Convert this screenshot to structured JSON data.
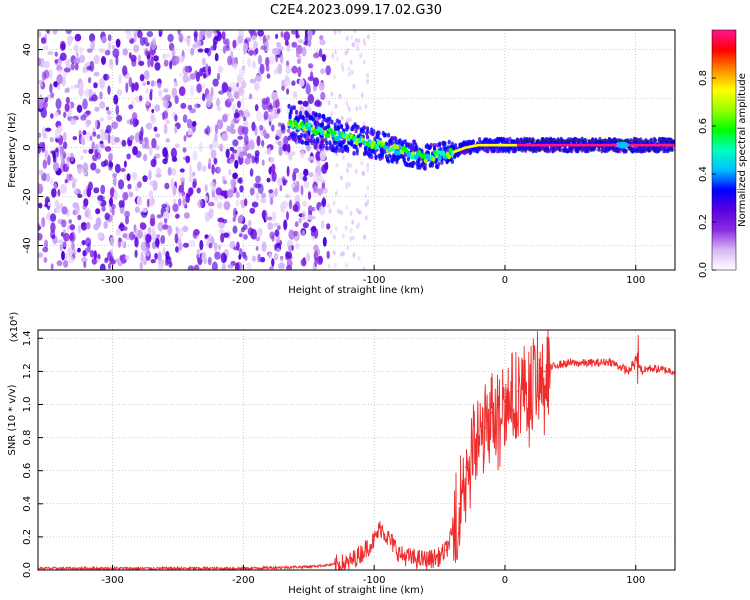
{
  "figure": {
    "title": "C2E4.2023.099.17.02.G30"
  },
  "chart_data": [
    {
      "type": "heatmap",
      "xlabel": "Height of straight line (km)",
      "ylabel": "Frequency (Hz)",
      "xlim": [
        -357,
        130
      ],
      "ylim": [
        -50,
        48
      ],
      "xticks": [
        -300,
        -200,
        -100,
        0,
        100
      ],
      "yticks": [
        -40,
        -20,
        0,
        20,
        40
      ],
      "colorbar": {
        "label": "Normalized spectral amplitude",
        "range": [
          0,
          1
        ],
        "ticks": [
          "0.0",
          "0.2",
          "0.4",
          "0.6",
          "0.8"
        ],
        "colormap": [
          "#ffffff",
          "#d9b8f5",
          "#8a2be2",
          "#5a00e0",
          "#0000ff",
          "#00bfff",
          "#00ffbf",
          "#00ff00",
          "#9aff00",
          "#ffff00",
          "#ff8c00",
          "#ff0000",
          "#ff1493"
        ]
      },
      "noise_region_x": [
        -357,
        -135
      ],
      "signal_trace": {
        "x": [
          -165,
          -150,
          -130,
          -110,
          -90,
          -75,
          -60,
          -50,
          -40,
          -30,
          -20,
          -10,
          0,
          20,
          50,
          85,
          95,
          110,
          130
        ],
        "frequency_hz": [
          10,
          8,
          5,
          3,
          0,
          -2,
          -4,
          -3,
          -2,
          0,
          1,
          1,
          1,
          1,
          1,
          1,
          1,
          1,
          1
        ]
      },
      "grid": true
    },
    {
      "type": "line",
      "xlabel": "Height of straight line (km)",
      "ylabel": "SNR (10 * v/v)",
      "y_multiplier": "(x10⁴)",
      "xlim": [
        -357,
        130
      ],
      "ylim": [
        0,
        1.45
      ],
      "xticks": [
        -300,
        -200,
        -100,
        0,
        100
      ],
      "yticks": [
        "0.0",
        "0.2",
        "0.4",
        "0.6",
        "0.8",
        "1.0",
        "1.2",
        "1.4"
      ],
      "series": [
        {
          "color": "#ee2c2c",
          "x": [
            -357,
            -300,
            -250,
            -200,
            -150,
            -120,
            -110,
            -100,
            -95,
            -90,
            -85,
            -80,
            -70,
            -60,
            -50,
            -45,
            -40,
            -35,
            -30,
            -25,
            -20,
            -15,
            -10,
            -5,
            0,
            10,
            20,
            30,
            40,
            50,
            60,
            70,
            80,
            90,
            95,
            100,
            105,
            110,
            120,
            130
          ],
          "values": [
            0.01,
            0.01,
            0.01,
            0.01,
            0.02,
            0.04,
            0.1,
            0.18,
            0.26,
            0.2,
            0.15,
            0.09,
            0.07,
            0.06,
            0.08,
            0.12,
            0.22,
            0.4,
            0.62,
            0.72,
            0.8,
            0.86,
            0.95,
            0.98,
            1.02,
            1.08,
            1.13,
            1.2,
            1.24,
            1.25,
            1.25,
            1.25,
            1.26,
            1.22,
            1.2,
            1.28,
            1.2,
            1.22,
            1.21,
            1.2
          ]
        }
      ],
      "grid": true
    }
  ]
}
